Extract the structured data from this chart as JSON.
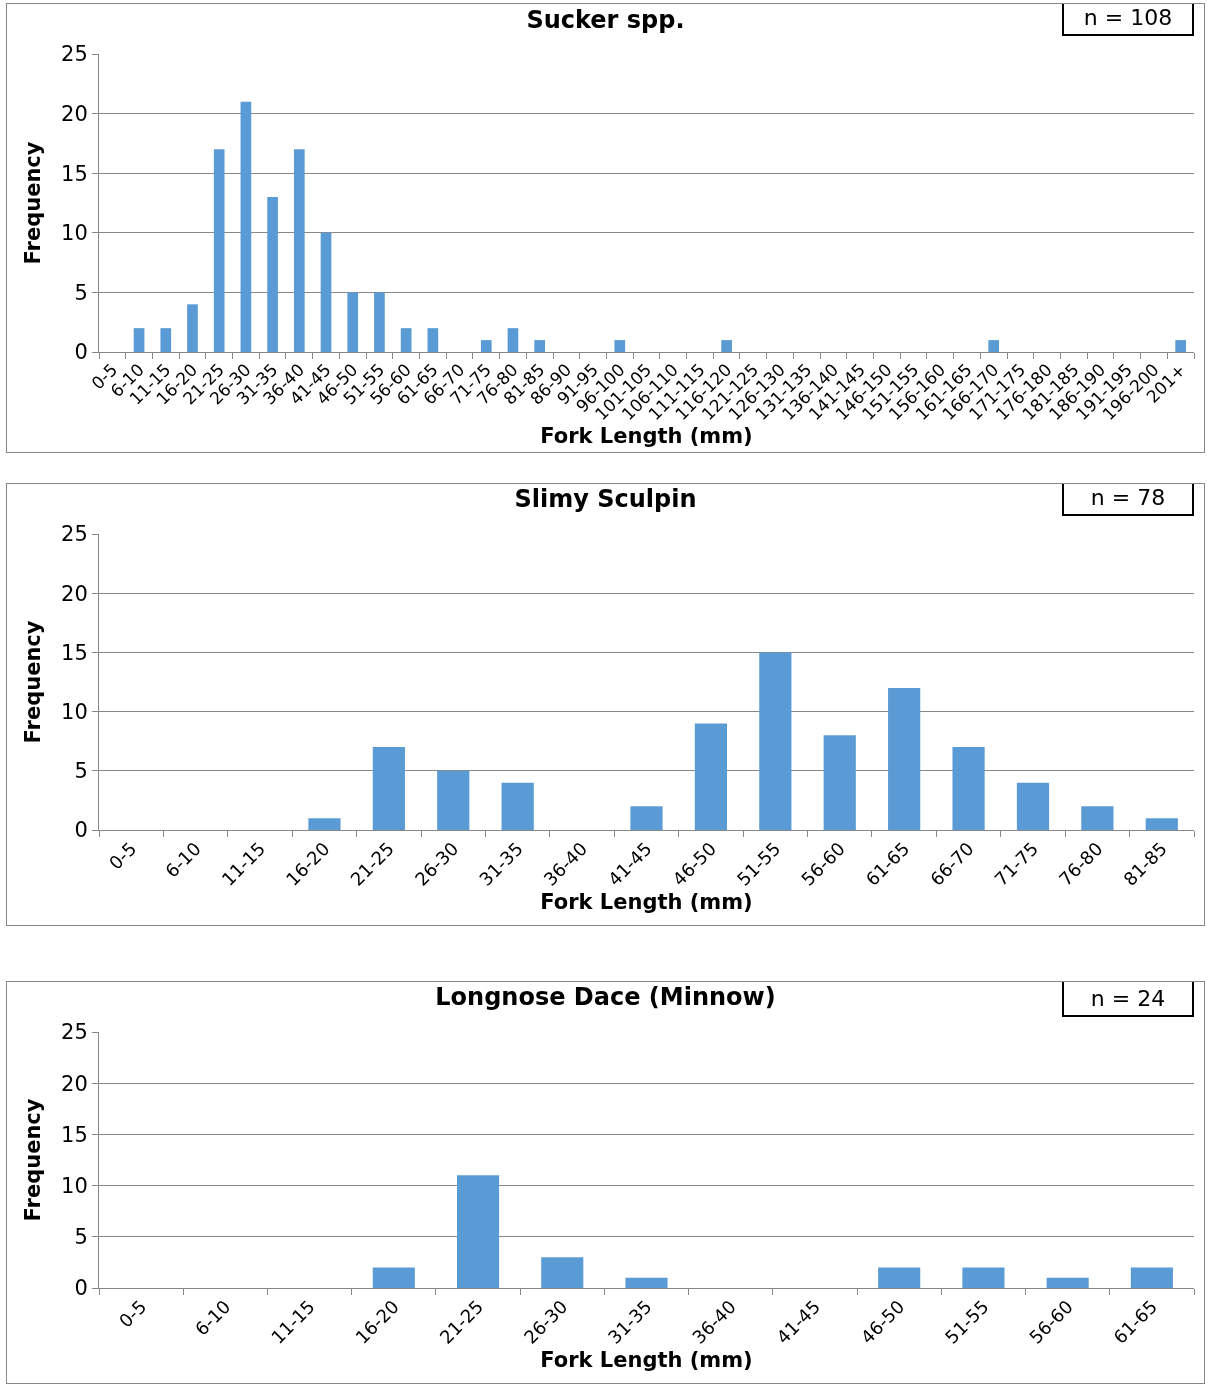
{
  "chart_data": [
    {
      "type": "bar",
      "title": "Sucker spp.",
      "xlabel": "Fork Length (mm)",
      "ylabel": "Frequency",
      "color": "#5b9bd5",
      "ylim": [
        0,
        25
      ],
      "yticks": [
        0,
        5,
        10,
        15,
        20,
        25
      ],
      "grid": "y",
      "annotations": [
        "n = 108"
      ],
      "categories": [
        "0-5",
        "6-10",
        "11-15",
        "16-20",
        "21-25",
        "26-30",
        "31-35",
        "36-40",
        "41-45",
        "46-50",
        "51-55",
        "56-60",
        "61-65",
        "66-70",
        "71-75",
        "76-80",
        "81-85",
        "86-90",
        "91-95",
        "96-100",
        "101-105",
        "106-110",
        "111-115",
        "116-120",
        "121-125",
        "126-130",
        "131-135",
        "136-140",
        "141-145",
        "146-150",
        "151-155",
        "156-160",
        "161-165",
        "166-170",
        "171-175",
        "176-180",
        "181-185",
        "186-190",
        "191-195",
        "196-200",
        "201+"
      ],
      "values": [
        0,
        2,
        2,
        4,
        17,
        21,
        13,
        17,
        10,
        5,
        5,
        2,
        2,
        0,
        1,
        2,
        1,
        0,
        0,
        1,
        0,
        0,
        0,
        1,
        0,
        0,
        0,
        0,
        0,
        0,
        0,
        0,
        0,
        1,
        0,
        0,
        0,
        0,
        0,
        0,
        1
      ]
    },
    {
      "type": "bar",
      "title": "Slimy Sculpin",
      "xlabel": "Fork Length (mm)",
      "ylabel": "Frequency",
      "color": "#5b9bd5",
      "ylim": [
        0,
        25
      ],
      "yticks": [
        0,
        5,
        10,
        15,
        20,
        25
      ],
      "grid": "y",
      "annotations": [
        "n = 78"
      ],
      "categories": [
        "0-5",
        "6-10",
        "11-15",
        "16-20",
        "21-25",
        "26-30",
        "31-35",
        "36-40",
        "41-45",
        "46-50",
        "51-55",
        "56-60",
        "61-65",
        "66-70",
        "71-75",
        "76-80",
        "81-85"
      ],
      "values": [
        0,
        0,
        0,
        1,
        7,
        5,
        4,
        0,
        2,
        9,
        15,
        8,
        12,
        7,
        4,
        2,
        1
      ]
    },
    {
      "type": "bar",
      "title": "Longnose Dace (Minnow)",
      "xlabel": "Fork Length (mm)",
      "ylabel": "Frequency",
      "color": "#5b9bd5",
      "ylim": [
        0,
        25
      ],
      "yticks": [
        0,
        5,
        10,
        15,
        20,
        25
      ],
      "grid": "y",
      "annotations": [
        "n = 24"
      ],
      "categories": [
        "0-5",
        "6-10",
        "11-15",
        "16-20",
        "21-25",
        "26-30",
        "31-35",
        "36-40",
        "41-45",
        "46-50",
        "51-55",
        "56-60",
        "61-65"
      ],
      "values": [
        0,
        0,
        0,
        2,
        11,
        3,
        1,
        0,
        0,
        2,
        2,
        1,
        2
      ]
    }
  ]
}
